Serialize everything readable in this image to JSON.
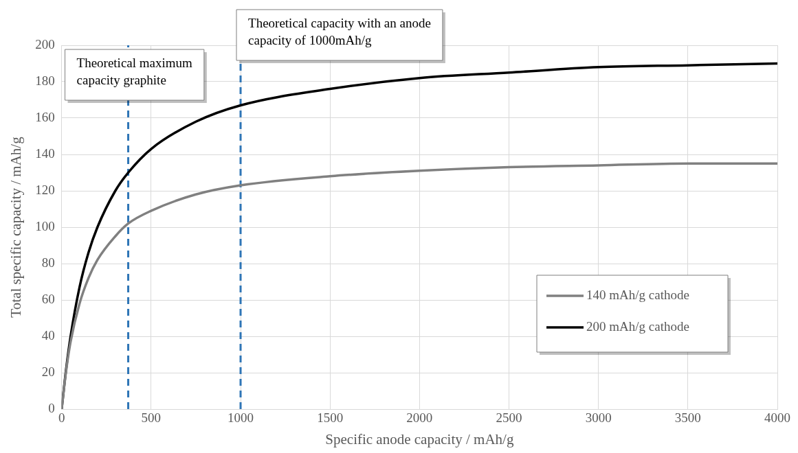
{
  "chart_data": {
    "type": "line",
    "xlabel": "Specific anode capacity / mAh/g",
    "ylabel": "Total specific capacity / mAh/g",
    "xlim": [
      0,
      4000
    ],
    "xticks": [
      0,
      500,
      1000,
      1500,
      2000,
      2500,
      3000,
      3500,
      4000
    ],
    "ylim": [
      0,
      200
    ],
    "yticks": [
      0,
      20,
      40,
      60,
      80,
      100,
      120,
      140,
      160,
      180,
      200
    ],
    "grid": true,
    "legend": "bottom right",
    "marker": "none",
    "line_style": "solid",
    "series": [
      {
        "name": "140 mAh/g cathode",
        "color": "#808080",
        "x": [
          0,
          25,
          50,
          100,
          150,
          200,
          300,
          372,
          500,
          750,
          1000,
          1500,
          2000,
          2500,
          3000,
          3500,
          4000
        ],
        "values": [
          0,
          21,
          37,
          58,
          72,
          82,
          95,
          102,
          109,
          118,
          123,
          128,
          131,
          133,
          134,
          135,
          135
        ]
      },
      {
        "name": "200 mAh/g cathode",
        "color": "#000000",
        "x": [
          0,
          25,
          50,
          100,
          150,
          200,
          300,
          372,
          500,
          750,
          1000,
          1500,
          2000,
          2500,
          3000,
          3500,
          4000
        ],
        "values": [
          0,
          22,
          40,
          67,
          86,
          100,
          120,
          130,
          143,
          158,
          167,
          176,
          182,
          185,
          188,
          189,
          190
        ]
      }
    ],
    "ref_lines": [
      {
        "axis": "x",
        "value": 372,
        "label": "Theoretical maximum capacity graphite",
        "color": "#2e75b6",
        "line_style": "dashed"
      },
      {
        "axis": "x",
        "value": 1000,
        "label": "Theoretical capacity with an anode capacity of 1000mAh/g",
        "color": "#2e75b6",
        "line_style": "dashed"
      }
    ]
  }
}
